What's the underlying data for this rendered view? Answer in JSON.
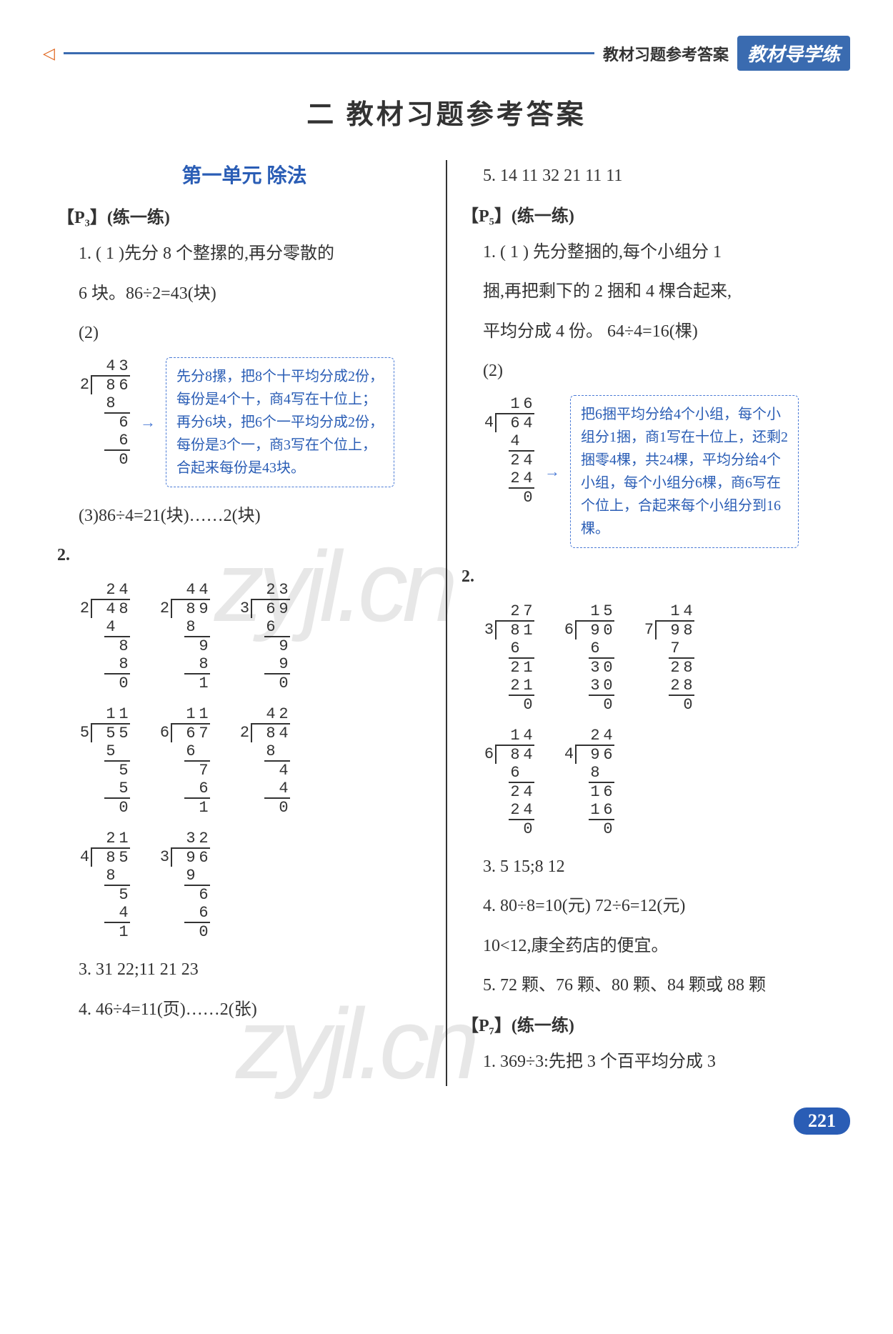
{
  "header": {
    "small": "教材习题参考答案",
    "badge": "教材导学练"
  },
  "title": "二  教材习题参考答案",
  "unit_title": "第一单元  除法",
  "sections": {
    "p3": "【P₃】(练一练)",
    "p5": "【P₅】(练一练)",
    "p7": "【P₇】(练一练)"
  },
  "left": {
    "q1_1": "1. ( 1 )先分 8 个整摞的,再分零散的",
    "q1_1b": "6 块。86÷2=43(块)",
    "q1_2": "(2)",
    "callout1": "先分8摞，把8个十平均分成2份，每份是4个十，商4写在十位上；再分6块，把6个一平均分成2份，每份是3个一，商3写在个位上，合起来每份是43块。",
    "q1_3": "(3)86÷4=21(块)……2(块)",
    "q2_label": "2.",
    "q3": "3. 31  22;11  21  23",
    "q4": "4. 46÷4=11(页)……2(张)",
    "ld_43_2_86": {
      "q": "43",
      "dv": "2",
      "dd": "86",
      "rows": [
        "8",
        "",
        "6",
        "6",
        "0"
      ]
    },
    "ld_24_2_48": {
      "q": "24",
      "dv": "2",
      "dd": "48",
      "rows": [
        "4",
        "",
        "8",
        "8",
        "0"
      ]
    },
    "ld_44_2_89": {
      "q": "44",
      "dv": "2",
      "dd": "89",
      "rows": [
        "8",
        "",
        "9",
        "8",
        "1"
      ]
    },
    "ld_23_3_69": {
      "q": "23",
      "dv": "3",
      "dd": "69",
      "rows": [
        "6",
        "",
        "9",
        "9",
        "0"
      ]
    },
    "ld_11_5_55": {
      "q": "11",
      "dv": "5",
      "dd": "55",
      "rows": [
        "5",
        "",
        "5",
        "5",
        "0"
      ]
    },
    "ld_11_6_67": {
      "q": "11",
      "dv": "6",
      "dd": "67",
      "rows": [
        "6",
        "",
        "7",
        "6",
        "1"
      ]
    },
    "ld_42_2_84": {
      "q": "42",
      "dv": "2",
      "dd": "84",
      "rows": [
        "8",
        "",
        "4",
        "4",
        "0"
      ]
    },
    "ld_21_4_85": {
      "q": "21",
      "dv": "4",
      "dd": "85",
      "rows": [
        "8",
        "",
        "5",
        "4",
        "1"
      ]
    },
    "ld_32_3_96": {
      "q": "32",
      "dv": "3",
      "dd": "96",
      "rows": [
        "9",
        "",
        "6",
        "6",
        "0"
      ]
    }
  },
  "right": {
    "q5": "5. 14  11  32  21  11  11",
    "q1_1": "1. ( 1 ) 先分整捆的,每个小组分 1",
    "q1_1b": "捆,再把剩下的 2 捆和 4 棵合起来,",
    "q1_1c": "平均分成 4 份。  64÷4=16(棵)",
    "q1_2": "(2)",
    "callout2": "把6捆平均分给4个小组，每个小组分1捆，商1写在十位上，还剩2捆零4棵，共24棵，平均分给4个小组，每个小组分6棵，商6写在个位上，合起来每个小组分到16棵。",
    "q2_label": "2.",
    "q3": "3. 5  15;8  12",
    "q4a": "4. 80÷8=10(元)  72÷6=12(元)",
    "q4b": "10<12,康全药店的便宜。",
    "q5b": "5. 72 颗、76 颗、80 颗、84 颗或 88 颗",
    "p7_q1": "1. 369÷3:先把 3 个百平均分成 3",
    "ld_16_4_64": {
      "q": "16",
      "dv": "4",
      "dd": "64",
      "rows": [
        "4",
        "",
        "24",
        "24",
        "0"
      ]
    },
    "ld_27_3_81": {
      "q": "27",
      "dv": "3",
      "dd": "81",
      "rows": [
        "6",
        "",
        "21",
        "21",
        "0"
      ]
    },
    "ld_15_6_90": {
      "q": "15",
      "dv": "6",
      "dd": "90",
      "rows": [
        "6",
        "",
        "30",
        "30",
        "0"
      ]
    },
    "ld_14_7_98": {
      "q": "14",
      "dv": "7",
      "dd": "98",
      "rows": [
        "7",
        "",
        "28",
        "28",
        "0"
      ]
    },
    "ld_14_6_84": {
      "q": "14",
      "dv": "6",
      "dd": "84",
      "rows": [
        "6",
        "",
        "24",
        "24",
        "0"
      ]
    },
    "ld_24_4_96": {
      "q": "24",
      "dv": "4",
      "dd": "96",
      "rows": [
        "8",
        "",
        "16",
        "16",
        "0"
      ]
    }
  },
  "page_number": "221",
  "watermark": "zyjl.cn",
  "colors": {
    "blue": "#2a5db5",
    "badge_blue": "#3a6bb0",
    "dash_blue": "#4b7bd6",
    "orange": "#e0661f",
    "text": "#333333"
  }
}
